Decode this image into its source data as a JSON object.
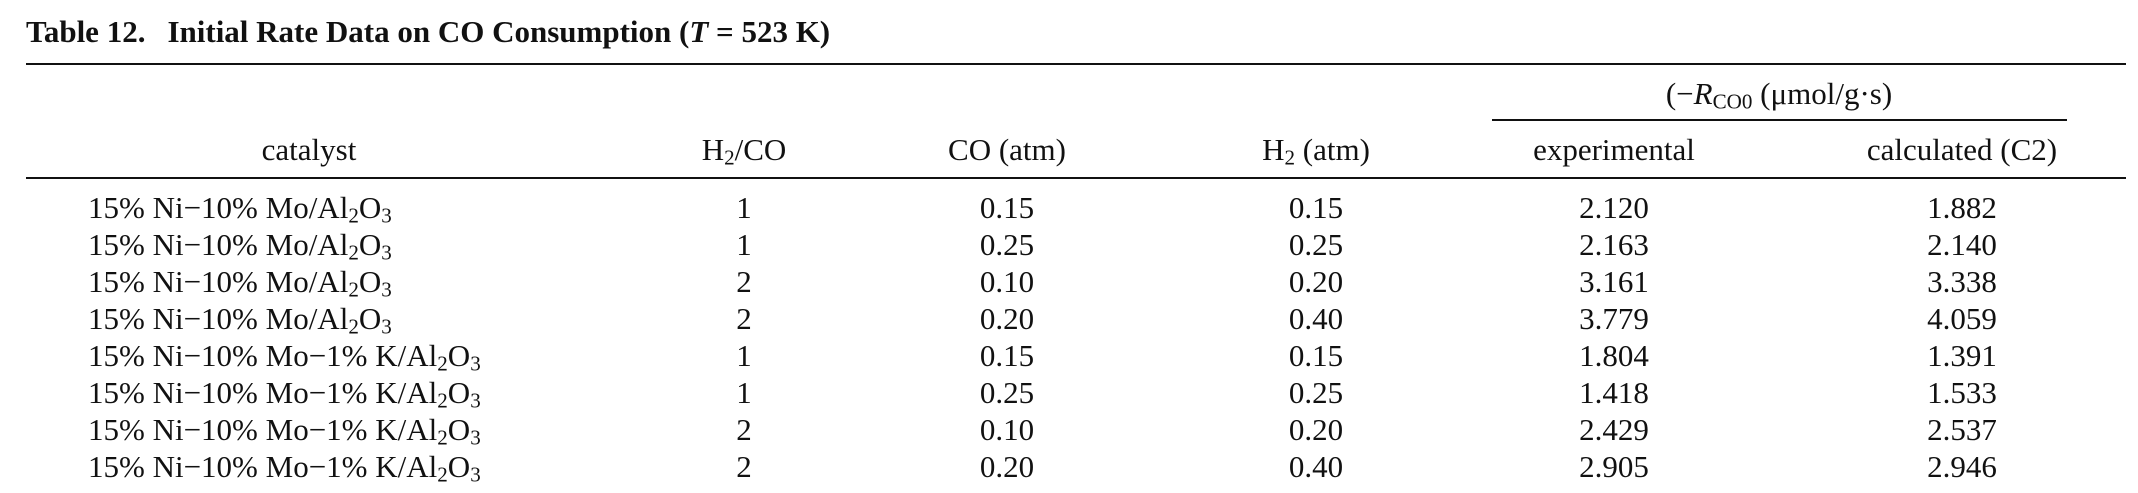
{
  "caption": {
    "number": "Table 12.",
    "title_prefix": "Initial Rate Data on CO Consumption (",
    "title_var": "T",
    "title_suffix": " = 523 K)"
  },
  "header": {
    "group": {
      "prefix": "(−",
      "var": "R",
      "var_sub": "CO",
      "after_sub": "0",
      "units": " (μmol/g·s)"
    },
    "catalyst": "catalyst",
    "h2co": {
      "main": "H",
      "sub": "2",
      "rest": "/CO"
    },
    "co_atm": "CO (atm)",
    "h2_atm": {
      "main": "H",
      "sub": "2",
      "rest": " (atm)"
    },
    "experimental": "experimental",
    "calculated": "calculated (C2)"
  },
  "rows": [
    {
      "catalyst": {
        "base": "15% Ni−10% Mo/Al",
        "s1": "2",
        "mid": "O",
        "s2": "3"
      },
      "h2co": "1",
      "co": "0.15",
      "h2": "0.15",
      "exp": "2.120",
      "calc": "1.882"
    },
    {
      "catalyst": {
        "base": "15% Ni−10% Mo/Al",
        "s1": "2",
        "mid": "O",
        "s2": "3"
      },
      "h2co": "1",
      "co": "0.25",
      "h2": "0.25",
      "exp": "2.163",
      "calc": "2.140"
    },
    {
      "catalyst": {
        "base": "15% Ni−10% Mo/Al",
        "s1": "2",
        "mid": "O",
        "s2": "3"
      },
      "h2co": "2",
      "co": "0.10",
      "h2": "0.20",
      "exp": "3.161",
      "calc": "3.338"
    },
    {
      "catalyst": {
        "base": "15% Ni−10% Mo/Al",
        "s1": "2",
        "mid": "O",
        "s2": "3"
      },
      "h2co": "2",
      "co": "0.20",
      "h2": "0.40",
      "exp": "3.779",
      "calc": "4.059"
    },
    {
      "catalyst": {
        "base": "15% Ni−10% Mo−1% K/Al",
        "s1": "2",
        "mid": "O",
        "s2": "3"
      },
      "h2co": "1",
      "co": "0.15",
      "h2": "0.15",
      "exp": "1.804",
      "calc": "1.391"
    },
    {
      "catalyst": {
        "base": "15% Ni−10% Mo−1% K/Al",
        "s1": "2",
        "mid": "O",
        "s2": "3"
      },
      "h2co": "1",
      "co": "0.25",
      "h2": "0.25",
      "exp": "1.418",
      "calc": "1.533"
    },
    {
      "catalyst": {
        "base": "15% Ni−10% Mo−1% K/Al",
        "s1": "2",
        "mid": "O",
        "s2": "3"
      },
      "h2co": "2",
      "co": "0.10",
      "h2": "0.20",
      "exp": "2.429",
      "calc": "2.537"
    },
    {
      "catalyst": {
        "base": "15% Ni−10% Mo−1% K/Al",
        "s1": "2",
        "mid": "O",
        "s2": "3"
      },
      "h2co": "2",
      "co": "0.20",
      "h2": "0.40",
      "exp": "2.905",
      "calc": "2.946"
    }
  ]
}
